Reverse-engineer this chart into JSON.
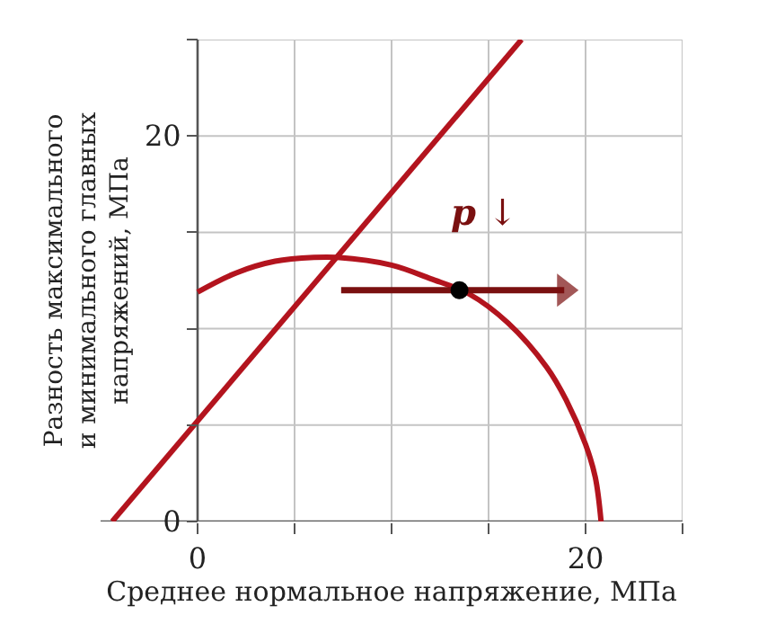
{
  "chart_data": {
    "type": "line",
    "xlabel": "Среднее нормальное напряжение, МПа",
    "ylabel": "Разность максимального\nи минимального главных\nнапряжений, МПа",
    "xlim": [
      -5,
      25
    ],
    "ylim": [
      0,
      25
    ],
    "xticks": [
      0,
      {
        "value": 5,
        "label": null
      },
      {
        "value": 10,
        "label": null
      },
      {
        "value": 15,
        "label": null
      },
      20,
      {
        "value": 25,
        "label": null
      }
    ],
    "yticks": [
      0,
      {
        "value": 5,
        "label": null
      },
      {
        "value": 10,
        "label": null
      },
      {
        "value": 15,
        "label": null
      },
      20,
      {
        "value": 25,
        "label": null
      }
    ],
    "grid": true,
    "series": [
      {
        "color": "#b3141e",
        "x": [
          -4.4,
          16.7
        ],
        "values": [
          0,
          25
        ]
      },
      {
        "color": "#b3141e",
        "x": [
          0,
          2,
          4,
          6,
          7.2,
          10,
          12,
          14,
          16,
          18,
          19,
          20,
          20.5,
          20.8
        ],
        "values": [
          11.9,
          12.9,
          13.5,
          13.7,
          13.7,
          13.3,
          12.6,
          11.8,
          10.3,
          8.0,
          6.3,
          4.0,
          2.3,
          0
        ]
      },
      {
        "color": "#7a1010",
        "marker": "triangle",
        "x": [
          7.4,
          18.9
        ],
        "values": [
          12.0,
          12.0
        ]
      },
      {
        "type": "scatter",
        "color": "#000000",
        "marker": "circle",
        "x": [
          13.5
        ],
        "values": [
          12.0
        ]
      }
    ],
    "annotations": [
      "p ↓"
    ]
  }
}
